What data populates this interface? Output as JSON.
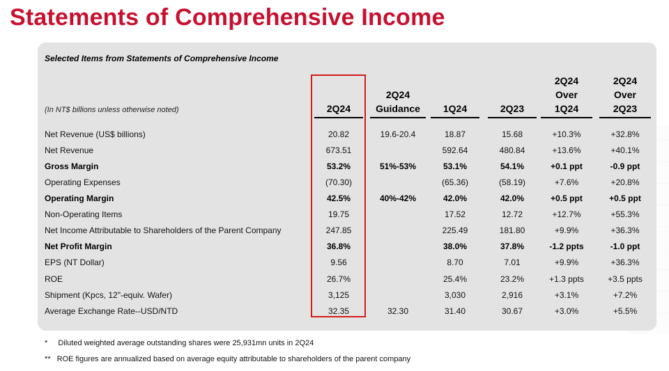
{
  "title": "Statements of Comprehensive Income",
  "table": {
    "subtitle": "Selected Items from Statements of Comprehensive Income",
    "unit_note": "(In NT$ billions unless otherwise noted)",
    "columns": [
      {
        "lines": [
          "2Q24"
        ]
      },
      {
        "lines": [
          "2Q24",
          "Guidance"
        ]
      },
      {
        "lines": [
          "1Q24"
        ]
      },
      {
        "lines": [
          "2Q23"
        ]
      },
      {
        "lines": [
          "2Q24",
          "Over",
          "1Q24"
        ]
      },
      {
        "lines": [
          "2Q24",
          "Over",
          "2Q23"
        ]
      }
    ],
    "rows": [
      {
        "label": "Net Revenue (US$ billions)",
        "bold": false,
        "values": [
          "20.82",
          "19.6-20.4",
          "18.87",
          "15.68",
          "+10.3%",
          "+32.8%"
        ]
      },
      {
        "label": "Net Revenue",
        "bold": false,
        "values": [
          "673.51",
          "",
          "592.64",
          "480.84",
          "+13.6%",
          "+40.1%"
        ]
      },
      {
        "label": "Gross Margin",
        "bold": true,
        "values": [
          "53.2%",
          "51%-53%",
          "53.1%",
          "54.1%",
          "+0.1 ppt",
          "-0.9 ppt"
        ]
      },
      {
        "label": "Operating Expenses",
        "bold": false,
        "values": [
          "(70.30)",
          "",
          "(65.36)",
          "(58.19)",
          "+7.6%",
          "+20.8%"
        ]
      },
      {
        "label": "Operating Margin",
        "bold": true,
        "values": [
          "42.5%",
          "40%-42%",
          "42.0%",
          "42.0%",
          "+0.5 ppt",
          "+0.5 ppt"
        ]
      },
      {
        "label": "Non-Operating Items",
        "bold": false,
        "values": [
          "19.75",
          "",
          "17.52",
          "12.72",
          "+12.7%",
          "+55.3%"
        ]
      },
      {
        "label": "Net Income Attributable to Shareholders of the Parent Company",
        "bold": false,
        "values": [
          "247.85",
          "",
          "225.49",
          "181.80",
          "+9.9%",
          "+36.3%"
        ]
      },
      {
        "label": "Net Profit Margin",
        "bold": true,
        "values": [
          "36.8%",
          "",
          "38.0%",
          "37.8%",
          "-1.2 ppts",
          "-1.0 ppt"
        ]
      },
      {
        "label": "EPS (NT Dollar)",
        "bold": false,
        "values": [
          "9.56",
          "",
          "8.70",
          "7.01",
          "+9.9%",
          "+36.3%"
        ]
      },
      {
        "label": "ROE",
        "bold": false,
        "values": [
          "26.7%",
          "",
          "25.4%",
          "23.2%",
          "+1.3 ppts",
          "+3.5 ppts"
        ]
      },
      {
        "label": "Shipment (Kpcs, 12\"-equiv. Wafer)",
        "bold": false,
        "values": [
          "3,125",
          "",
          "3,030",
          "2,916",
          "+3.1%",
          "+7.2%"
        ]
      },
      {
        "label": "Average Exchange Rate--USD/NTD",
        "bold": false,
        "values": [
          "32.35",
          "32.30",
          "31.40",
          "30.67",
          "+3.0%",
          "+5.5%"
        ]
      }
    ]
  },
  "footnotes": [
    {
      "mark": "*",
      "text": "Diluted weighted average outstanding shares were 25,931mn units in 2Q24"
    },
    {
      "mark": "**",
      "text": "ROE figures are annualized based on average equity attributable to shareholders of the parent company"
    }
  ],
  "colors": {
    "title": "#c8102e",
    "highlight": "#d41c1c",
    "panel": "#e3e3e3"
  }
}
